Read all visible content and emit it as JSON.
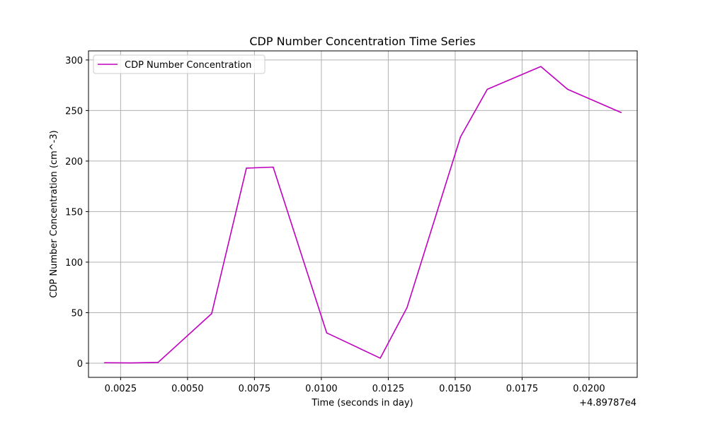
{
  "chart_data": {
    "type": "line",
    "title": "CDP Number Concentration Time Series",
    "xlabel": "Time (seconds in day)",
    "ylabel": "CDP Number Concentration (cm^-3)",
    "x_offset_label": "+4.89787e4",
    "xlim": [
      0.0013,
      0.0218
    ],
    "ylim": [
      -14,
      309
    ],
    "x_ticks": [
      0.0025,
      0.005,
      0.0075,
      0.01,
      0.0125,
      0.015,
      0.0175,
      0.02
    ],
    "x_tick_labels": [
      "0.0025",
      "0.0050",
      "0.0075",
      "0.0100",
      "0.0125",
      "0.0150",
      "0.0175",
      "0.0200"
    ],
    "y_ticks": [
      0,
      50,
      100,
      150,
      200,
      250,
      300
    ],
    "y_tick_labels": [
      "0",
      "50",
      "100",
      "150",
      "200",
      "250",
      "300"
    ],
    "grid": true,
    "legend_position": "top-left",
    "series": [
      {
        "name": "CDP Number Concentration",
        "color": "#bf00bf",
        "x": [
          0.0019,
          0.0029,
          0.0039,
          0.0059,
          0.0072,
          0.0082,
          0.0102,
          0.0122,
          0.0132,
          0.0152,
          0.0162,
          0.0182,
          0.0192,
          0.0212
        ],
        "y": [
          0.5,
          0.3,
          0.8,
          49,
          193,
          194,
          30,
          5,
          55,
          224,
          271,
          293.5,
          271,
          248
        ]
      }
    ]
  }
}
